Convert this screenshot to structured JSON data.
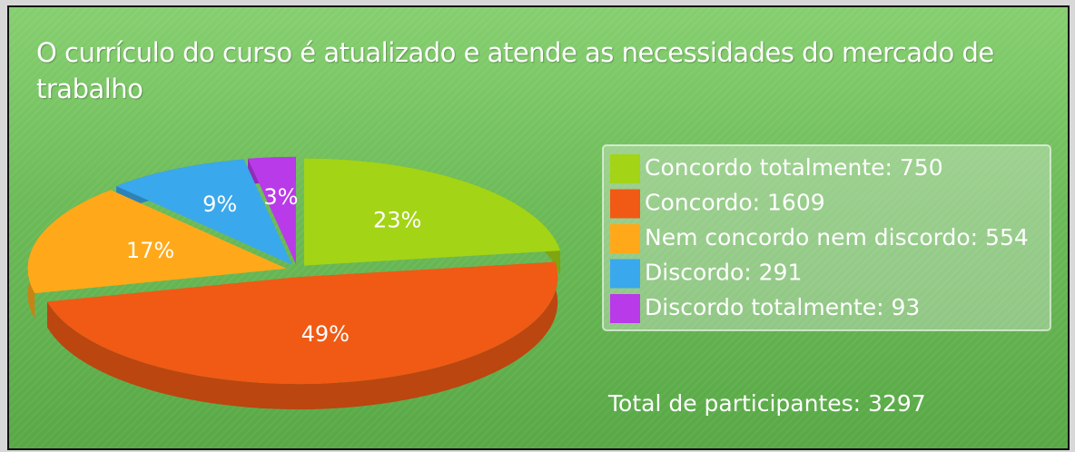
{
  "chart_data": {
    "type": "pie",
    "title": "O currículo do curso é atualizado e atende as necessidades do mercado de trabalho",
    "categories": [
      "Concordo totalmente: 750",
      "Concordo: 1609",
      "Nem concordo nem discordo: 554",
      "Discordo: 291",
      "Discordo totalmente: 93"
    ],
    "values": [
      23,
      49,
      17,
      9,
      3
    ],
    "value_labels": [
      "23%",
      "49%",
      "17%",
      "9%",
      "3%"
    ],
    "colors": [
      "#a3d416",
      "#f05a14",
      "#ffa91a",
      "#3aa8ec",
      "#b93ae8"
    ],
    "legend": "right",
    "note": "Total de participantes: 3297"
  }
}
